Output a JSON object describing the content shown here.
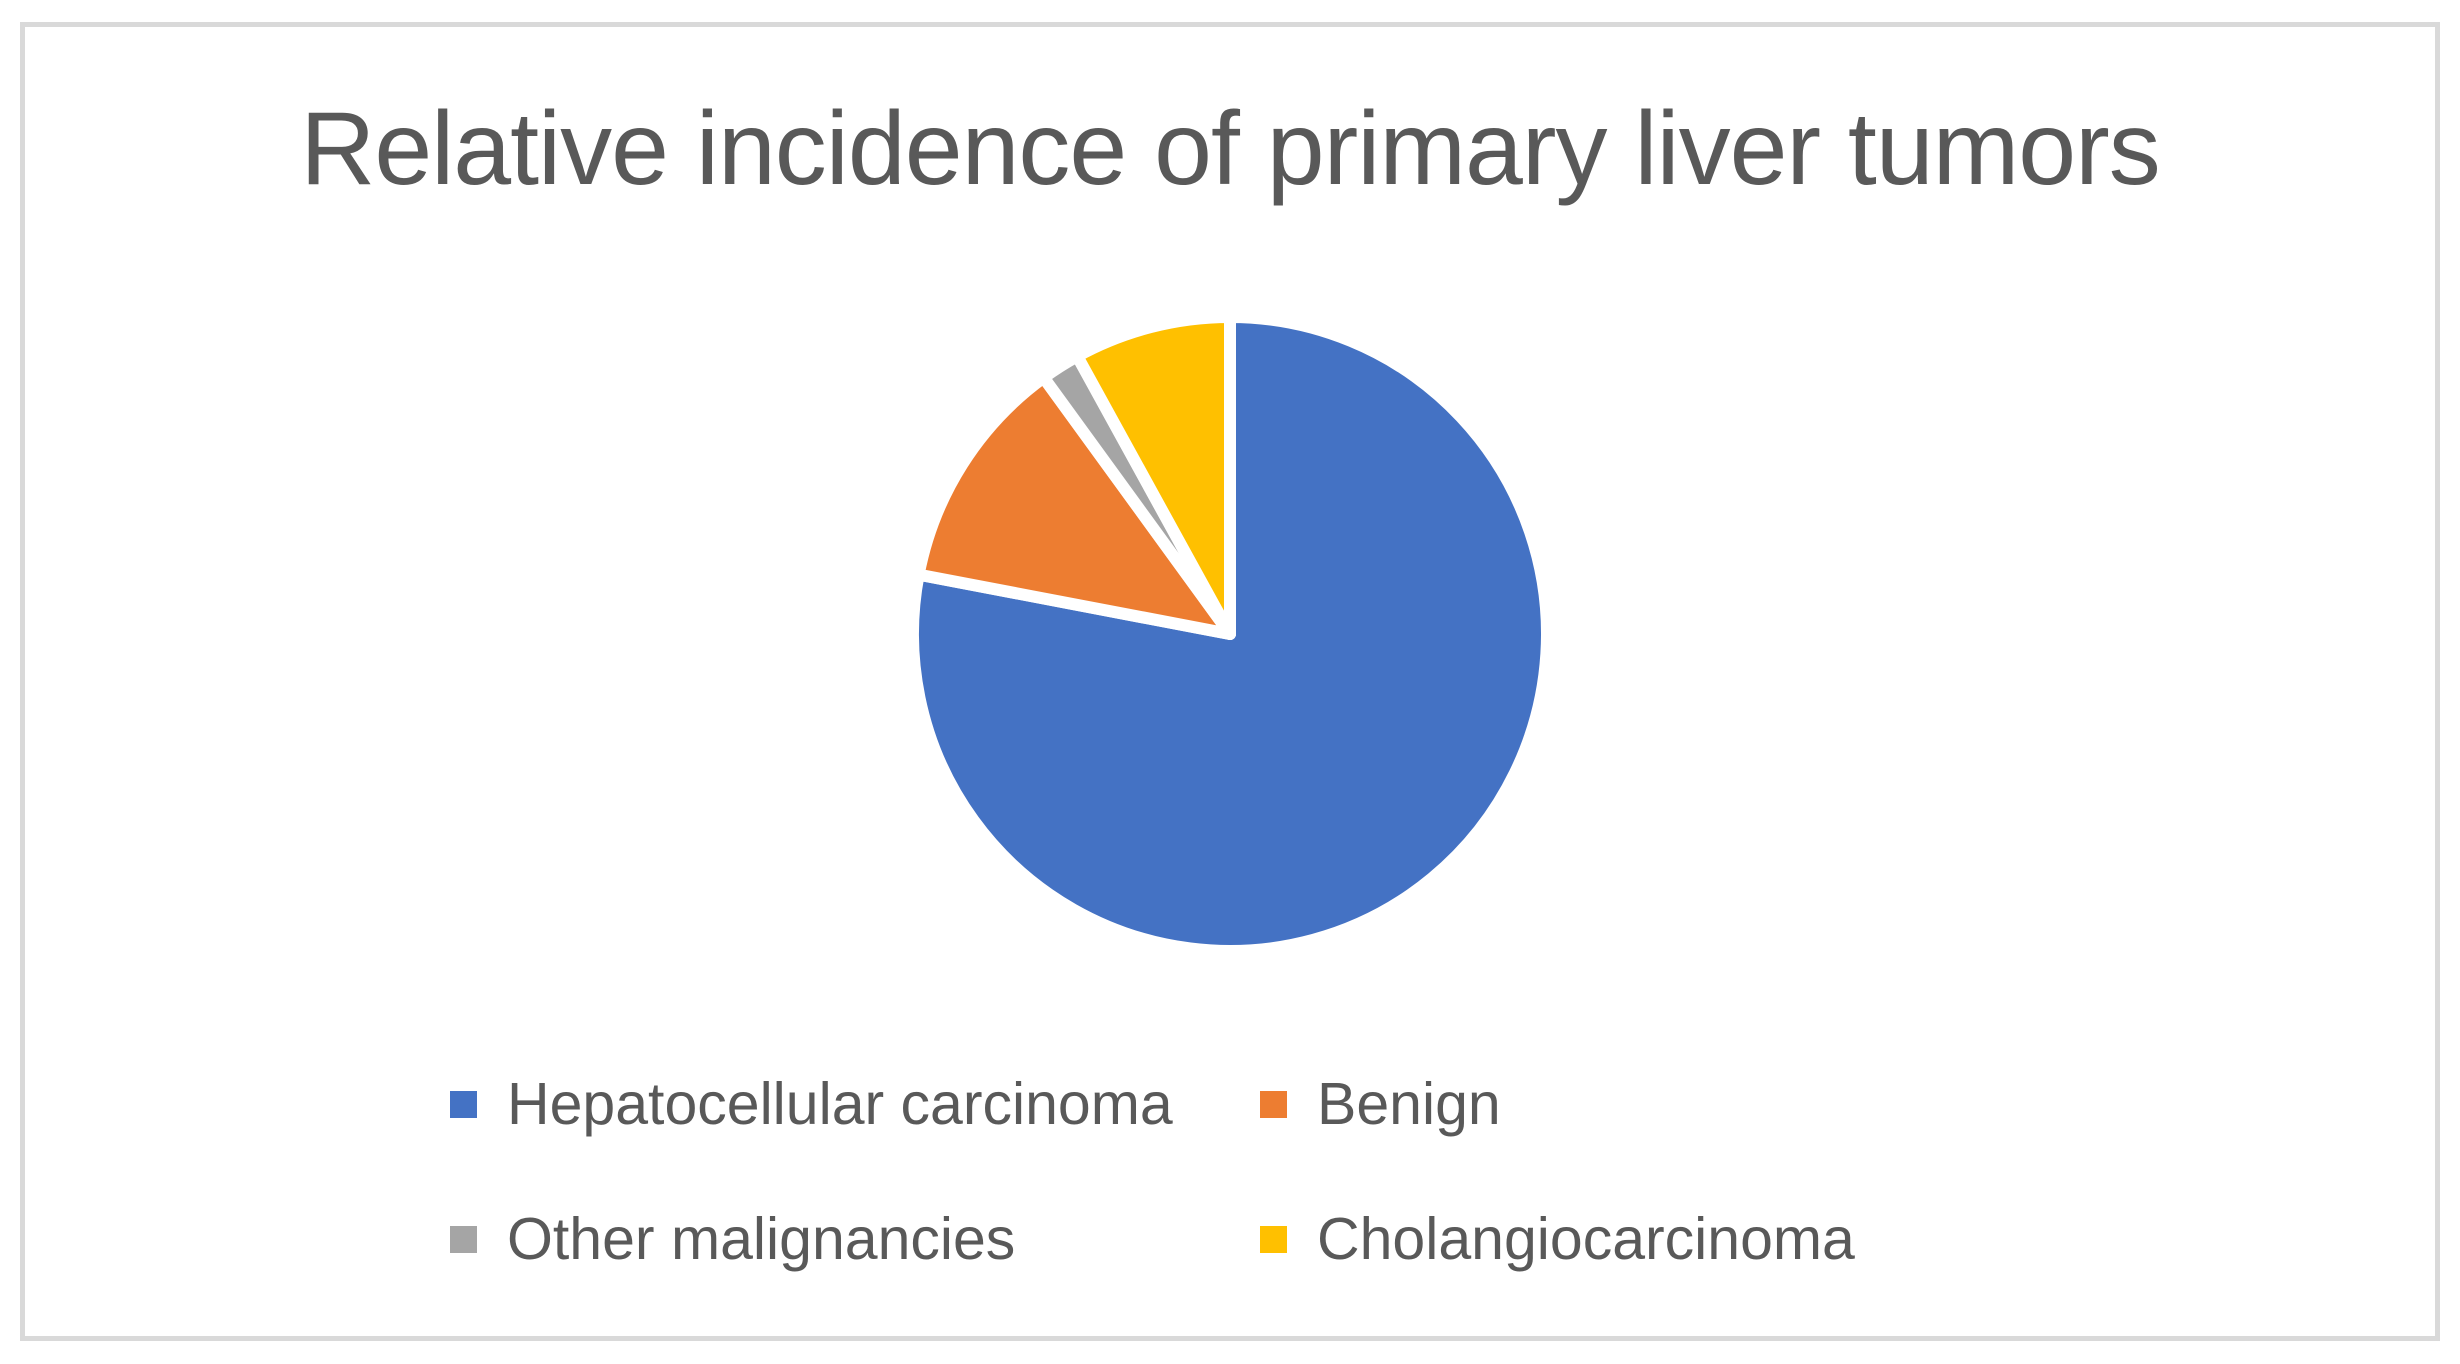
{
  "chart": {
    "title": "Relative incidence of primary liver tumors"
  },
  "chart_data": {
    "type": "pie",
    "title": "Relative incidence of primary liver tumors",
    "labels": [
      "Hepatocellular carcinoma",
      "Benign",
      "Other malignancies",
      "Cholangiocarcinoma"
    ],
    "values": [
      78,
      12,
      2,
      8
    ],
    "unit": "percent (estimated from slice angles; no data labels shown)",
    "colors": [
      "#4472C4",
      "#ED7D31",
      "#A5A5A5",
      "#FFC000"
    ],
    "start_angle_deg": 0,
    "direction": "clockwise",
    "slice_border_color": "#FFFFFF",
    "slice_border_width": 12,
    "legend_position": "bottom"
  },
  "legend": {
    "items": [
      {
        "label": "Hepatocellular carcinoma",
        "color": "#4472C4"
      },
      {
        "label": "Benign",
        "color": "#ED7D31"
      },
      {
        "label": "Other malignancies",
        "color": "#A5A5A5"
      },
      {
        "label": "Cholangiocarcinoma",
        "color": "#FFC000"
      }
    ]
  },
  "style": {
    "text_color": "#595959",
    "frame_border_color": "#D9D9D9",
    "background": "#FFFFFF"
  }
}
